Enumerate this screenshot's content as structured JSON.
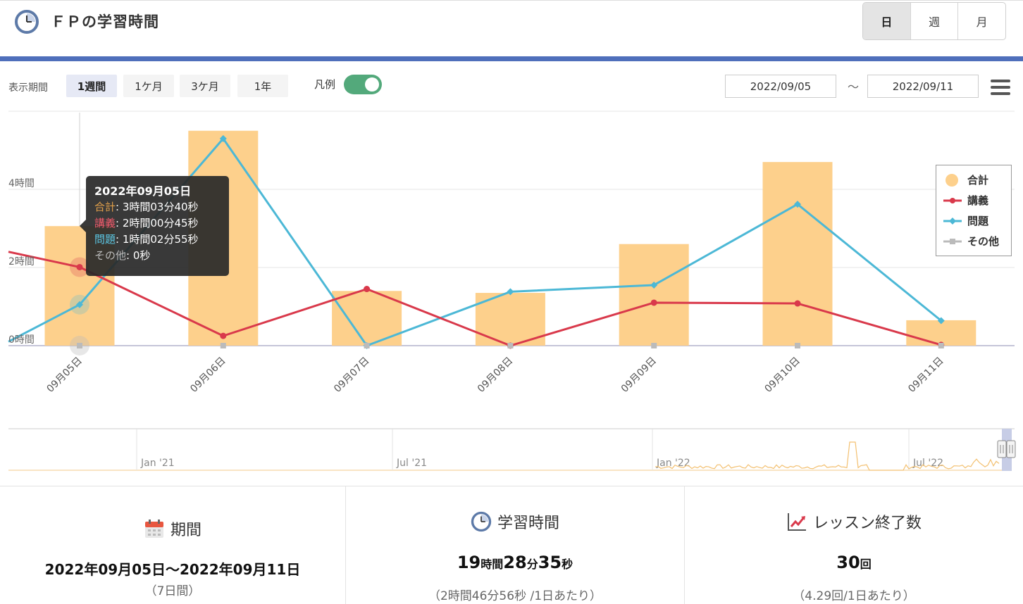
{
  "header": {
    "title": "ＦＰの学習時間",
    "granularity": [
      "日",
      "週",
      "月"
    ],
    "granularity_active": 0
  },
  "controls": {
    "period_label": "表示期間",
    "ranges": [
      "1週間",
      "1ケ月",
      "3ケ月",
      "1年"
    ],
    "range_active": 0,
    "legend_label": "凡例",
    "legend_on": true,
    "start_date": "2022/09/05",
    "tilde": "～",
    "end_date": "2022/09/11"
  },
  "colors": {
    "total": "#fdd08c",
    "lecture": "#d9394b",
    "problem": "#4cb8d6",
    "other": "#bbbbbb",
    "accent_bar": "#4f6fbb",
    "toggle": "#53a97b"
  },
  "chart_data": {
    "type": "bar",
    "categories": [
      "09月05日",
      "09月06日",
      "09月07日",
      "09月08日",
      "09月09日",
      "09月10日",
      "09月11日"
    ],
    "y_unit": "時間",
    "y_ticks": [
      "0時間",
      "2時間",
      "4時間"
    ],
    "ylim": [
      0,
      6
    ],
    "grid": true,
    "legend_position": "right",
    "series": [
      {
        "name": "合計",
        "type": "bar",
        "values": [
          3.06,
          5.5,
          1.4,
          1.35,
          2.6,
          4.7,
          0.65
        ]
      },
      {
        "name": "講義",
        "type": "line",
        "values": [
          2.01,
          0.25,
          1.45,
          0.0,
          1.1,
          1.08,
          0.02
        ]
      },
      {
        "name": "問題",
        "type": "line",
        "values": [
          1.05,
          5.3,
          0.0,
          1.38,
          1.55,
          3.62,
          0.64
        ]
      },
      {
        "name": "その他",
        "type": "line",
        "values": [
          0,
          0,
          0,
          0,
          0,
          0,
          0
        ]
      }
    ],
    "tooltip": {
      "date": "2022年09月05日",
      "rows": [
        {
          "label": "合計",
          "value": "3時間03分40秒",
          "color": "#e2a04a"
        },
        {
          "label": "講義",
          "value": "2時間00分45秒",
          "color": "#f05a6a"
        },
        {
          "label": "問題",
          "value": "1時間02分55秒",
          "color": "#5cc8e6"
        },
        {
          "label": "その他",
          "value": "0秒",
          "color": "#bbbbbb"
        }
      ]
    },
    "navigator_labels": [
      "Jan '21",
      "Jul '21",
      "Jan '22",
      "Jul '22"
    ]
  },
  "stats": {
    "period": {
      "title": "期間",
      "value": "2022年09月05日～2022年09月11日",
      "sub": "（7日間）"
    },
    "study_time": {
      "title": "学習時間",
      "hours": "19",
      "hours_unit": "時間",
      "minutes": "28",
      "minutes_unit": "分",
      "seconds": "35",
      "seconds_unit": "秒",
      "sub": "（2時間46分56秒 /1日あたり）"
    },
    "lessons": {
      "title": "レッスン終了数",
      "count": "30",
      "count_unit": "回",
      "sub": "（4.29回/1日あたり）"
    }
  }
}
